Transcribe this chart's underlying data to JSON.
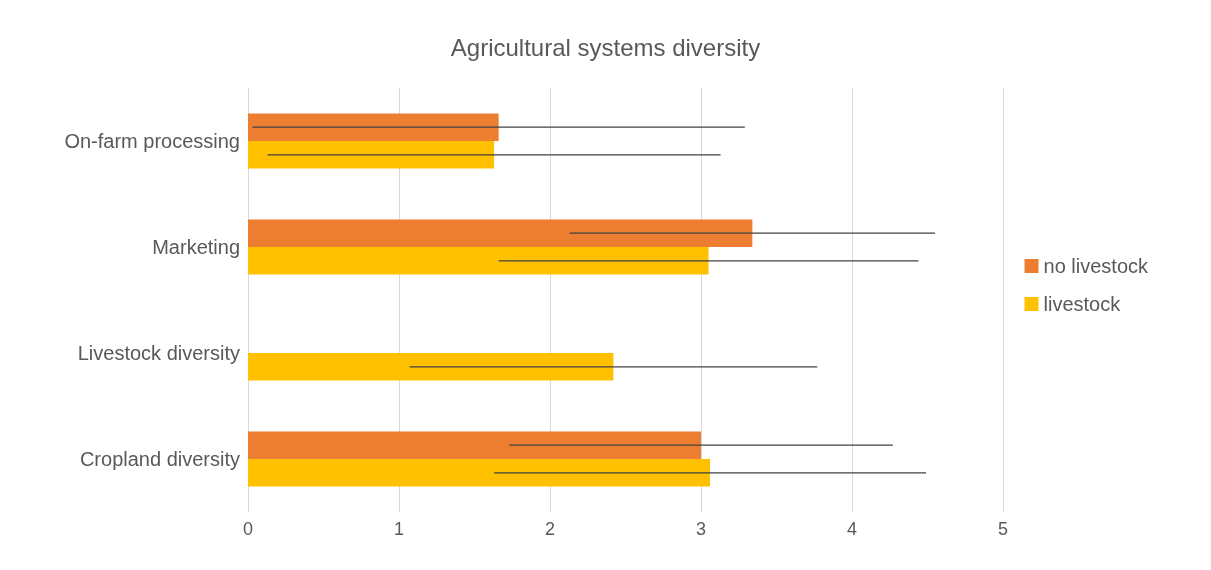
{
  "chart_data": {
    "type": "bar",
    "orientation": "horizontal",
    "title": "Agricultural systems diversity",
    "categories": [
      "On-farm processing",
      "Marketing",
      "Livestock diversity",
      "Cropland diversity"
    ],
    "series": [
      {
        "name": "no livestock",
        "color": "#ed7d31",
        "values": [
          1.66,
          3.34,
          null,
          3.0
        ],
        "errors": [
          1.63,
          1.21,
          null,
          1.27
        ]
      },
      {
        "name": "livestock",
        "color": "#ffc000",
        "values": [
          1.63,
          3.05,
          2.42,
          3.06
        ],
        "errors": [
          1.5,
          1.39,
          1.35,
          1.43
        ]
      }
    ],
    "xlim": [
      0,
      5
    ],
    "xticks": [
      0,
      1,
      2,
      3,
      4,
      5
    ],
    "grid": "x",
    "legend": "right"
  }
}
